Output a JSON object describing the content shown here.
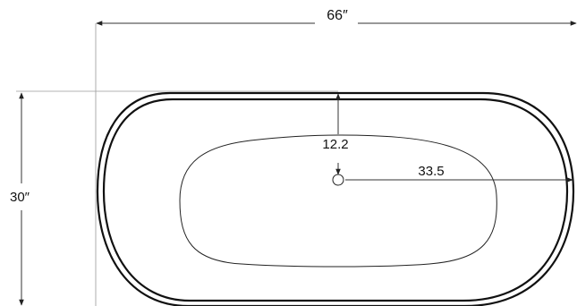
{
  "dimensions": {
    "length_label": "66″",
    "width_label": "30″",
    "drain_offset_label": "12.2",
    "drain_to_end_label": "33.5"
  },
  "colors": {
    "outline": "#111111",
    "dimension_line": "#333333",
    "extension_line": "#9a9a9a",
    "background": "#ffffff"
  },
  "icons": {
    "drain": "drain-icon"
  }
}
